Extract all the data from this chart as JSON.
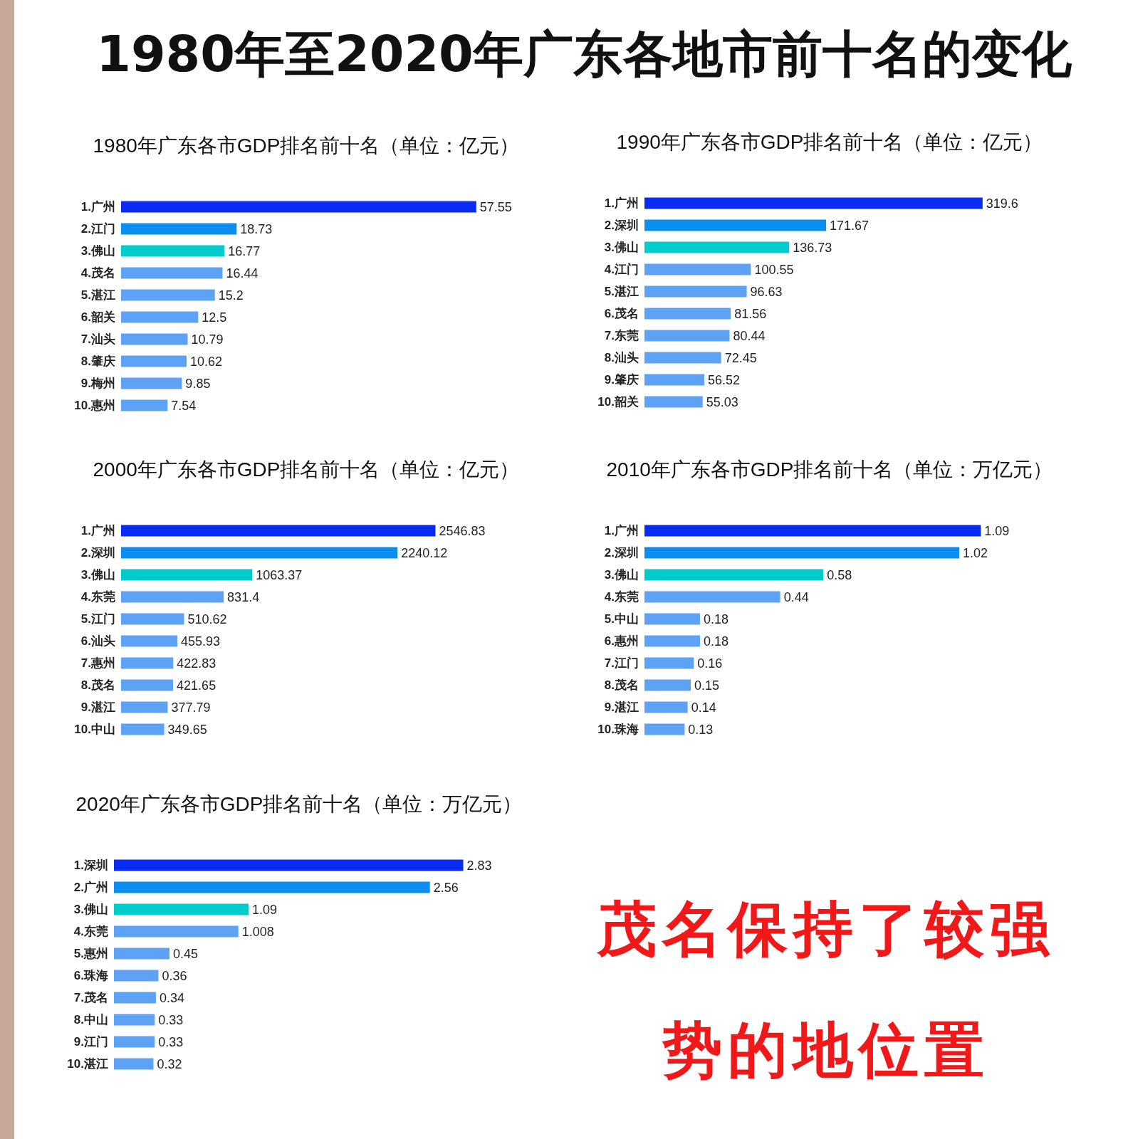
{
  "chart_data": [
    {
      "type": "other",
      "title": "1980年至2020年广东各地市前十名的变化"
    },
    {
      "type": "bar",
      "orientation": "horizontal",
      "title": "1980年广东各市GDP排名前十名（单位：亿元）",
      "tick_labels": "y",
      "data_labels": true,
      "categories": [
        "1.广州",
        "2.江门",
        "3.佛山",
        "4.茂名",
        "5.湛江",
        "6.韶关",
        "7.汕头",
        "8.肇庆",
        "9.梅州",
        "10.惠州"
      ],
      "values": [
        57.55,
        18.73,
        16.77,
        16.44,
        15.2,
        12.5,
        10.79,
        10.62,
        9.85,
        7.54
      ],
      "colors": [
        "#0a2cf2",
        "#0a8ef0",
        "#00cccc",
        "#5ea2f5",
        "#5ea2f5",
        "#5ea2f5",
        "#5ea2f5",
        "#5ea2f5",
        "#5ea2f5",
        "#5ea2f5"
      ]
    },
    {
      "type": "bar",
      "orientation": "horizontal",
      "title": "1990年广东各市GDP排名前十名（单位：亿元）",
      "tick_labels": "y",
      "data_labels": true,
      "categories": [
        "1.广州",
        "2.深圳",
        "3.佛山",
        "4.江门",
        "5.湛江",
        "6.茂名",
        "7.东莞",
        "8.汕头",
        "9.肇庆",
        "10.韶关"
      ],
      "values": [
        319.6,
        171.67,
        136.73,
        100.55,
        96.63,
        81.56,
        80.44,
        72.45,
        56.52,
        55.03
      ],
      "colors": [
        "#0a2cf2",
        "#0a8ef0",
        "#00cccc",
        "#5ea2f5",
        "#5ea2f5",
        "#5ea2f5",
        "#5ea2f5",
        "#5ea2f5",
        "#5ea2f5",
        "#5ea2f5"
      ]
    },
    {
      "type": "bar",
      "orientation": "horizontal",
      "title": "2000年广东各市GDP排名前十名（单位：亿元）",
      "tick_labels": "y",
      "data_labels": true,
      "categories": [
        "1.广州",
        "2.深圳",
        "3.佛山",
        "4.东莞",
        "5.江门",
        "6.汕头",
        "7.惠州",
        "8.茂名",
        "9.湛江",
        "10.中山"
      ],
      "values": [
        2546.83,
        2240.12,
        1063.37,
        831.4,
        510.62,
        455.93,
        422.83,
        421.65,
        377.79,
        349.65
      ],
      "colors": [
        "#0a2cf2",
        "#0a8ef0",
        "#00cccc",
        "#5ea2f5",
        "#5ea2f5",
        "#5ea2f5",
        "#5ea2f5",
        "#5ea2f5",
        "#5ea2f5",
        "#5ea2f5"
      ]
    },
    {
      "type": "bar",
      "orientation": "horizontal",
      "title": "2010年广东各市GDP排名前十名（单位：万亿元）",
      "tick_labels": "y",
      "data_labels": true,
      "categories": [
        "1.广州",
        "2.深圳",
        "3.佛山",
        "4.东莞",
        "5.中山",
        "6.惠州",
        "7.江门",
        "8.茂名",
        "9.湛江",
        "10.珠海"
      ],
      "values": [
        1.09,
        1.02,
        0.58,
        0.44,
        0.18,
        0.18,
        0.16,
        0.15,
        0.14,
        0.13
      ],
      "colors": [
        "#0a2cf2",
        "#0a8ef0",
        "#00cccc",
        "#5ea2f5",
        "#5ea2f5",
        "#5ea2f5",
        "#5ea2f5",
        "#5ea2f5",
        "#5ea2f5",
        "#5ea2f5"
      ]
    },
    {
      "type": "bar",
      "orientation": "horizontal",
      "title": "2020年广东各市GDP排名前十名（单位：万亿元）",
      "tick_labels": "y",
      "data_labels": true,
      "categories": [
        "1.深圳",
        "2.广州",
        "3.佛山",
        "4.东莞",
        "5.惠州",
        "6.珠海",
        "7.茂名",
        "8.中山",
        "9.江门",
        "10.湛江"
      ],
      "values": [
        2.83,
        2.56,
        1.09,
        1.008,
        0.45,
        0.36,
        0.34,
        0.33,
        0.33,
        0.32
      ],
      "colors": [
        "#0a2cf2",
        "#0a8ef0",
        "#00cccc",
        "#5ea2f5",
        "#5ea2f5",
        "#5ea2f5",
        "#5ea2f5",
        "#5ea2f5",
        "#5ea2f5",
        "#5ea2f5"
      ]
    },
    {
      "type": "other",
      "annotations": [
        "茂名保持了较强势的地位置"
      ]
    }
  ]
}
